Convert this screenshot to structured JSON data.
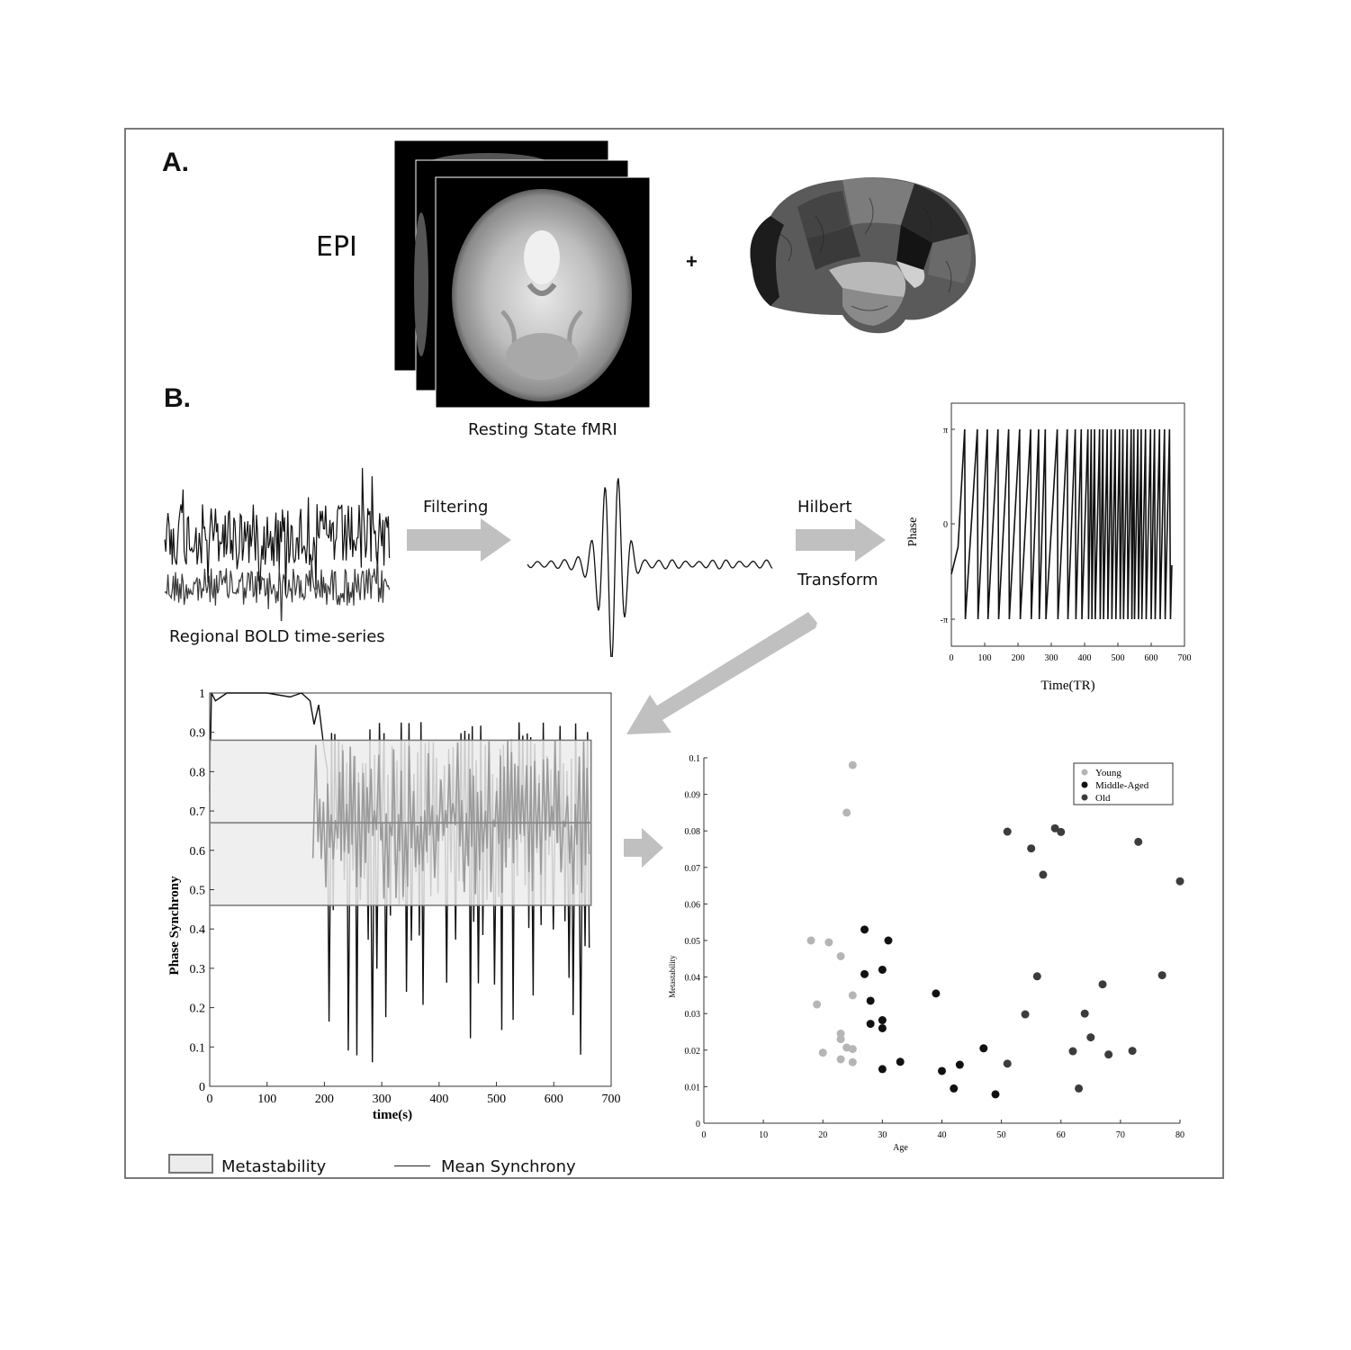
{
  "panel_a_label": "A.",
  "panel_b_label": "B.",
  "epi_label": "EPI",
  "plus_sign": "+",
  "fmri_caption": "Resting State fMRI",
  "bold_caption": "Regional BOLD time-series",
  "filtering_label": "Filtering",
  "hilbert_label_1": "Hilbert",
  "hilbert_label_2": "Transform",
  "legend_metastability": "Metastability",
  "legend_mean_synchrony": "Mean Synchrony",
  "colors": {
    "frame": "#7a7a7a",
    "arrow": "#c0c0c0",
    "young": "#b5b5b5",
    "middle": "#111111",
    "old": "#3c3c3c"
  },
  "chart_data": [
    {
      "type": "line",
      "xlabel": "Time(TR)",
      "ylabel": "Phase",
      "xlim": [
        0,
        700
      ],
      "xticks": [
        "0",
        "100",
        "200",
        "300",
        "400",
        "500",
        "600",
        "700"
      ],
      "yticks": [
        "-π",
        "0",
        "π"
      ]
    },
    {
      "type": "line",
      "xlabel": "time(s)",
      "ylabel": "Phase Synchrony",
      "xlim": [
        0,
        700
      ],
      "ylim": [
        0,
        1
      ],
      "xticks": [
        "0",
        "100",
        "200",
        "300",
        "400",
        "500",
        "600",
        "700"
      ],
      "yticks": [
        "0",
        "0.1",
        "0.2",
        "0.3",
        "0.4",
        "0.5",
        "0.6",
        "0.7",
        "0.8",
        "0.9",
        "1"
      ],
      "mean_synchrony": 0.67,
      "metastability_band": [
        0.46,
        0.88
      ]
    },
    {
      "type": "scatter",
      "xlabel": "Age",
      "ylabel": "Metastability",
      "xlim": [
        0,
        80
      ],
      "ylim": [
        0,
        0.1
      ],
      "xticks": [
        "0",
        "10",
        "20",
        "30",
        "40",
        "50",
        "60",
        "70",
        "80"
      ],
      "yticks": [
        "0",
        "0.01",
        "0.02",
        "0.03",
        "0.04",
        "0.05",
        "0.06",
        "0.07",
        "0.08",
        "0.09",
        "0.1"
      ],
      "legend_position": "top-right",
      "series": [
        {
          "name": "Young",
          "points": [
            [
              25,
              0.098
            ],
            [
              24,
              0.085
            ],
            [
              18,
              0.05
            ],
            [
              21,
              0.0495
            ],
            [
              23,
              0.0457
            ],
            [
              25,
              0.035
            ],
            [
              19,
              0.0325
            ],
            [
              23,
              0.0245
            ],
            [
              23,
              0.023
            ],
            [
              24,
              0.0207
            ],
            [
              25,
              0.0203
            ],
            [
              20,
              0.0193
            ],
            [
              23,
              0.0175
            ],
            [
              25,
              0.0167
            ]
          ]
        },
        {
          "name": "Middle-Aged",
          "points": [
            [
              27,
              0.053
            ],
            [
              31,
              0.05
            ],
            [
              27,
              0.0408
            ],
            [
              30,
              0.042
            ],
            [
              28,
              0.0335
            ],
            [
              39,
              0.0355
            ],
            [
              28,
              0.0272
            ],
            [
              30,
              0.0282
            ],
            [
              30,
              0.026
            ],
            [
              33,
              0.0168
            ],
            [
              30,
              0.0148
            ],
            [
              40,
              0.0143
            ],
            [
              43,
              0.016
            ],
            [
              47,
              0.0205
            ],
            [
              42,
              0.0095
            ],
            [
              49,
              0.0079
            ]
          ]
        },
        {
          "name": "Old",
          "points": [
            [
              51,
              0.0798
            ],
            [
              55,
              0.0752
            ],
            [
              59,
              0.0807
            ],
            [
              60,
              0.0797
            ],
            [
              57,
              0.068
            ],
            [
              73,
              0.077
            ],
            [
              80,
              0.0662
            ],
            [
              56,
              0.0402
            ],
            [
              67,
              0.038
            ],
            [
              77,
              0.0405
            ],
            [
              54,
              0.0298
            ],
            [
              64,
              0.03
            ],
            [
              65,
              0.0235
            ],
            [
              62,
              0.0197
            ],
            [
              68,
              0.0188
            ],
            [
              72,
              0.0198
            ],
            [
              51,
              0.0163
            ],
            [
              63,
              0.0095
            ]
          ]
        }
      ]
    }
  ]
}
